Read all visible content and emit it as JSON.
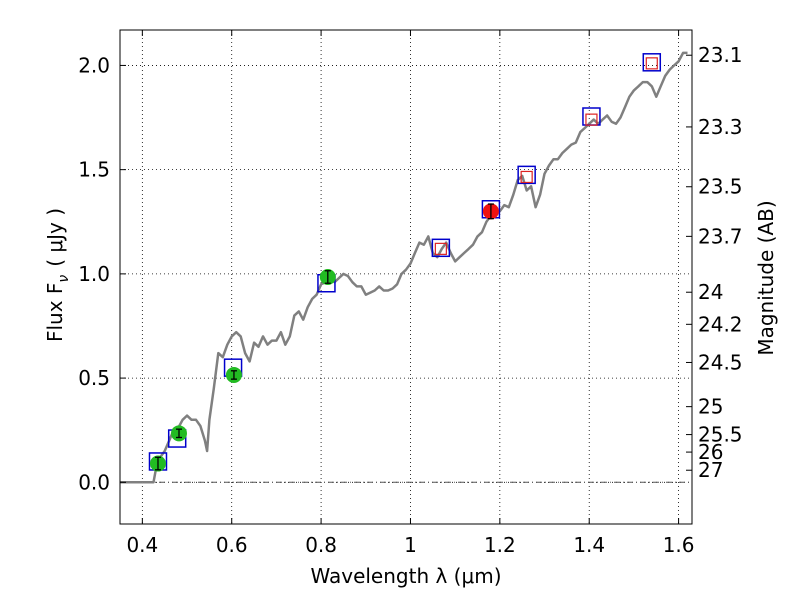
{
  "chart_data": {
    "type": "scatter",
    "xlabel": "Wavelength  λ (μm)",
    "ylabel": "Flux  F",
    "ylabel_subscript": "ν",
    "ylabel_unit": "( μJy )",
    "right_ylabel": "Magnitude (AB)",
    "xlim": [
      0.35,
      1.63
    ],
    "ylim": [
      -0.2,
      2.17
    ],
    "grid": true,
    "x_ticks": [
      {
        "value": 0.4,
        "label": "0.4"
      },
      {
        "value": 0.6,
        "label": "0.6"
      },
      {
        "value": 0.8,
        "label": "0.8"
      },
      {
        "value": 1.0,
        "label": "1"
      },
      {
        "value": 1.2,
        "label": "1.2"
      },
      {
        "value": 1.4,
        "label": "1.4"
      },
      {
        "value": 1.6,
        "label": "1.6"
      }
    ],
    "y_ticks": [
      {
        "value": 0.0,
        "label": "0.0"
      },
      {
        "value": 0.5,
        "label": "0.5"
      },
      {
        "value": 1.0,
        "label": "1.0"
      },
      {
        "value": 1.5,
        "label": "1.5"
      },
      {
        "value": 2.0,
        "label": "2.0"
      }
    ],
    "magnitude_ticks": [
      {
        "flux": 2.049,
        "label": "23.1"
      },
      {
        "flux": 1.705,
        "label": "23.3"
      },
      {
        "flux": 1.418,
        "label": "23.5"
      },
      {
        "flux": 1.18,
        "label": "23.7"
      },
      {
        "flux": 0.912,
        "label": "24"
      },
      {
        "flux": 0.758,
        "label": "24.2"
      },
      {
        "flux": 0.575,
        "label": "24.5"
      },
      {
        "flux": 0.363,
        "label": "25"
      },
      {
        "flux": 0.229,
        "label": "25.5"
      },
      {
        "flux": 0.145,
        "label": "26"
      },
      {
        "flux": 0.058,
        "label": "27"
      }
    ],
    "model_spectrum": {
      "name": "model SED",
      "color": "#808080",
      "x": [
        0.35,
        0.4,
        0.42,
        0.425,
        0.43,
        0.44,
        0.45,
        0.46,
        0.47,
        0.48,
        0.49,
        0.5,
        0.51,
        0.52,
        0.53,
        0.54,
        0.545,
        0.55,
        0.56,
        0.57,
        0.58,
        0.59,
        0.6,
        0.61,
        0.62,
        0.63,
        0.64,
        0.65,
        0.66,
        0.67,
        0.68,
        0.69,
        0.7,
        0.71,
        0.72,
        0.73,
        0.74,
        0.75,
        0.76,
        0.77,
        0.78,
        0.79,
        0.8,
        0.81,
        0.82,
        0.83,
        0.84,
        0.85,
        0.86,
        0.87,
        0.88,
        0.89,
        0.9,
        0.91,
        0.92,
        0.93,
        0.94,
        0.95,
        0.96,
        0.97,
        0.98,
        0.99,
        1.0,
        1.01,
        1.02,
        1.03,
        1.04,
        1.05,
        1.06,
        1.07,
        1.08,
        1.09,
        1.1,
        1.11,
        1.12,
        1.13,
        1.14,
        1.15,
        1.16,
        1.17,
        1.18,
        1.19,
        1.2,
        1.21,
        1.22,
        1.23,
        1.24,
        1.25,
        1.26,
        1.27,
        1.28,
        1.29,
        1.3,
        1.31,
        1.32,
        1.33,
        1.34,
        1.35,
        1.36,
        1.37,
        1.38,
        1.39,
        1.4,
        1.41,
        1.42,
        1.43,
        1.44,
        1.45,
        1.46,
        1.47,
        1.48,
        1.49,
        1.5,
        1.51,
        1.52,
        1.53,
        1.54,
        1.55,
        1.56,
        1.57,
        1.58,
        1.59,
        1.6,
        1.61,
        1.62
      ],
      "y": [
        0.0,
        0.0,
        0.0,
        0.0,
        0.06,
        0.12,
        0.15,
        0.2,
        0.25,
        0.26,
        0.3,
        0.32,
        0.3,
        0.3,
        0.27,
        0.2,
        0.15,
        0.3,
        0.45,
        0.62,
        0.6,
        0.66,
        0.7,
        0.72,
        0.7,
        0.62,
        0.58,
        0.67,
        0.65,
        0.7,
        0.66,
        0.68,
        0.68,
        0.72,
        0.66,
        0.7,
        0.8,
        0.82,
        0.78,
        0.84,
        0.88,
        0.9,
        0.95,
        0.96,
        0.98,
        0.96,
        0.98,
        1.0,
        0.99,
        0.96,
        0.94,
        0.94,
        0.9,
        0.91,
        0.92,
        0.94,
        0.92,
        0.92,
        0.93,
        0.95,
        1.0,
        1.02,
        1.05,
        1.1,
        1.15,
        1.14,
        1.18,
        1.1,
        1.08,
        1.12,
        1.15,
        1.1,
        1.06,
        1.08,
        1.1,
        1.12,
        1.14,
        1.18,
        1.2,
        1.25,
        1.28,
        1.3,
        1.3,
        1.33,
        1.32,
        1.38,
        1.45,
        1.47,
        1.4,
        1.42,
        1.32,
        1.38,
        1.48,
        1.52,
        1.55,
        1.55,
        1.58,
        1.6,
        1.62,
        1.63,
        1.68,
        1.7,
        1.72,
        1.74,
        1.72,
        1.74,
        1.76,
        1.73,
        1.72,
        1.75,
        1.8,
        1.85,
        1.88,
        1.9,
        1.92,
        1.92,
        1.9,
        1.85,
        1.9,
        1.95,
        1.98,
        2.0,
        2.02,
        2.06,
        2.06
      ]
    },
    "observed_green": {
      "name": "observed flux (green)",
      "color": "#22bb22",
      "points": [
        {
          "x": 0.435,
          "y": 0.09,
          "err": 0.03
        },
        {
          "x": 0.482,
          "y": 0.235,
          "err": 0.02
        },
        {
          "x": 0.605,
          "y": 0.515,
          "err": 0.02
        },
        {
          "x": 0.815,
          "y": 0.985,
          "err": 0.03
        }
      ]
    },
    "observed_red": {
      "name": "observed flux (red)",
      "color": "#ee1111",
      "points": [
        {
          "x": 1.18,
          "y": 1.3,
          "err": 0.035
        }
      ]
    },
    "model_photometry": {
      "name": "model photometry (blue squares)",
      "color": "#0000cc",
      "points": [
        {
          "x": 0.435,
          "y": 0.1
        },
        {
          "x": 0.478,
          "y": 0.21
        },
        {
          "x": 0.603,
          "y": 0.55
        },
        {
          "x": 0.812,
          "y": 0.955
        },
        {
          "x": 1.068,
          "y": 1.125
        },
        {
          "x": 1.18,
          "y": 1.31
        },
        {
          "x": 1.26,
          "y": 1.475
        },
        {
          "x": 1.405,
          "y": 1.755
        },
        {
          "x": 1.54,
          "y": 2.015
        }
      ]
    },
    "upper_limits": {
      "name": "upper limits (red open squares)",
      "color": "#dd2222",
      "points": [
        {
          "x": 1.068,
          "y": 1.12
        },
        {
          "x": 1.26,
          "y": 1.465
        },
        {
          "x": 1.405,
          "y": 1.74
        },
        {
          "x": 1.54,
          "y": 2.01
        }
      ]
    }
  }
}
